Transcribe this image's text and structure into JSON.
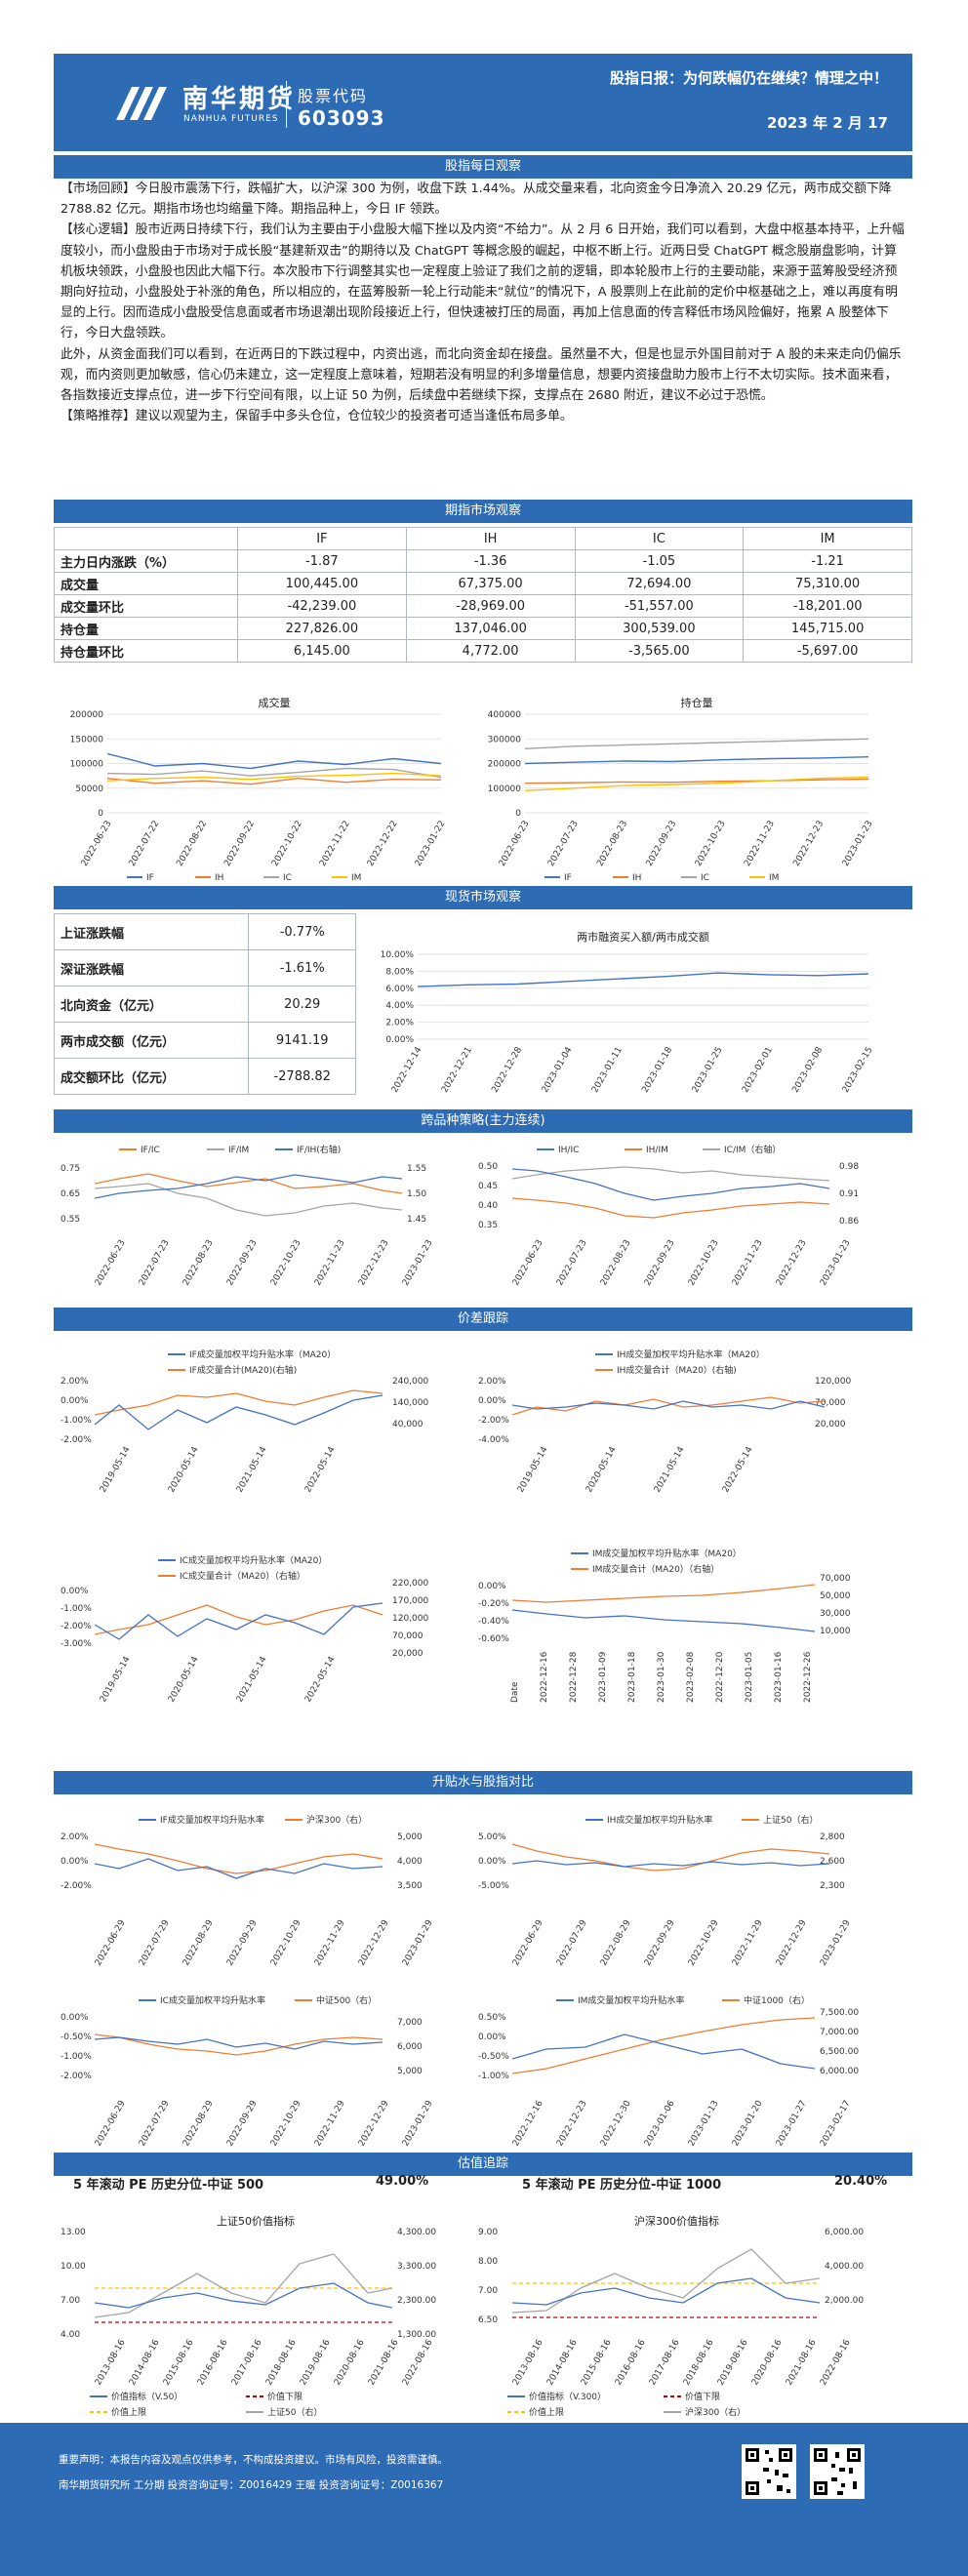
{
  "header": {
    "brand_cn": "南华期货",
    "brand_en": "NANHUA FUTURES",
    "code_label": "股票代码",
    "code": "603093",
    "title": "股指日报：为何跌幅仍在继续？情理之中！",
    "date": "2023 年 2 月 17"
  },
  "sections": {
    "daily": "股指每日观察",
    "futures": "期指市场观察",
    "spot": "现货市场观察",
    "cross": "跨品种策略(主力连续)",
    "price": "价差跟踪",
    "basis": "升贴水与股指对比",
    "valuation": "估值追踪"
  },
  "paragraphs": [
    {
      "tag": "【市场回顾】",
      "text": "今日股市震荡下行，跌幅扩大，以沪深 300 为例，收盘下跌 1.44%。从成交量来看，北向资金今日净流入 20.29 亿元，两市成交额下降 2788.82 亿元。期指市场也均缩量下降。期指品种上，今日 IF 领跌。"
    },
    {
      "tag": "【核心逻辑】",
      "text": "股市近两日持续下行，我们认为主要由于小盘股大幅下挫以及内资“不给力”。从 2 月 6 日开始，我们可以看到，大盘中枢基本持平，上升幅度较小，而小盘股由于市场对于成长股“基建新双击”的期待以及 ChatGPT 等概念股的崛起，中枢不断上行。近两日受 ChatGPT 概念股崩盘影响，计算机板块领跌，小盘股也因此大幅下行。本次股市下行调整其实也一定程度上验证了我们之前的逻辑，即本轮股市上行的主要动能，来源于蓝筹股受经济预期向好拉动，小盘股处于补涨的角色，所以相应的，在蓝筹股新一轮上行动能未“就位”的情况下，A 股票则上在此前的定价中枢基础之上，难以再度有明显的上行。因而造成小盘股受信息面或者市场退潮出现阶段接近上行，但快速被打压的局面，再加上信息面的传言释低市场风险偏好，拖累 A 股整体下行，今日大盘领跌。"
    },
    {
      "tag": "",
      "text": "此外，从资金面我们可以看到，在近两日的下跌过程中，内资出逃，而北向资金却在接盘。虽然量不大，但是也显示外国目前对于 A 股的未来走向仍偏乐观，而内资则更加敏感，信心仍未建立，这一定程度上意味着，短期若没有明显的利多增量信息，想要内资接盘助力股市上行不太切实际。技术面来看，各指数接近支撑点位，进一步下行空间有限，以上证 50 为例，后续盘中若继续下探，支撑点在 2680 附近，建议不必过于恐慌。"
    },
    {
      "tag": "【策略推荐】",
      "text": "建议以观望为主，保留手中多头仓位，仓位较少的投资者可适当逢低布局多单。"
    }
  ],
  "futures_table": {
    "headers": [
      "IF",
      "IH",
      "IC",
      "IM"
    ],
    "rows": [
      {
        "label": "主力日内涨跌（%）",
        "values": [
          "-1.87",
          "-1.36",
          "-1.05",
          "-1.21"
        ]
      },
      {
        "label": "成交量",
        "values": [
          "100,445.00",
          "67,375.00",
          "72,694.00",
          "75,310.00"
        ]
      },
      {
        "label": "成交量环比",
        "values": [
          "-42,239.00",
          "-28,969.00",
          "-51,557.00",
          "-18,201.00"
        ]
      },
      {
        "label": "持仓量",
        "values": [
          "227,826.00",
          "137,046.00",
          "300,539.00",
          "145,715.00"
        ]
      },
      {
        "label": "持仓量环比",
        "values": [
          "6,145.00",
          "4,772.00",
          "-3,565.00",
          "-5,697.00"
        ]
      }
    ]
  },
  "spot_table": [
    {
      "label": "上证涨跌幅",
      "value": "-0.77%"
    },
    {
      "label": "深证涨跌幅",
      "value": "-1.61%"
    },
    {
      "label": "北向资金（亿元）",
      "value": "20.29"
    },
    {
      "label": "两市成交额（亿元）",
      "value": "9141.19"
    },
    {
      "label": "成交额环比（亿元）",
      "value": "-2788.82"
    }
  ],
  "pe": {
    "left_label": "5 年滚动 PE 历史分位-中证 500",
    "left_value": "49.00%",
    "right_label": "5 年滚动 PE 历史分位-中证 1000",
    "right_value": "20.40%"
  },
  "footer": {
    "line1": "重要声明：本报告内容及观点仅供参考，不构成投资建议。市场有风险，投资需谨慎。",
    "line2": "南华期货研究所  工分期  投资咨询证号：Z0016429    王暖  投资咨询证号：Z0016367"
  },
  "colors": {
    "primary": "#2e6bb5",
    "blue": "#4472c4",
    "orange": "#ed7d31",
    "gray": "#a5a5a5",
    "yellow": "#ffc000"
  },
  "chart_data": [
    {
      "id": "volume",
      "type": "line",
      "title": "成交量",
      "x": [
        "2022-06-23",
        "2022-07-22",
        "2022-08-22",
        "2022-09-22",
        "2022-10-22",
        "2022-11-22",
        "2022-12-22",
        "2023-01-22"
      ],
      "ylim": [
        0,
        200000
      ],
      "yticks": [
        "200000",
        "150000",
        "100000",
        "50000",
        "0"
      ],
      "series": [
        {
          "name": "IF",
          "values": [
            120000,
            95000,
            100000,
            90000,
            105000,
            98000,
            110000,
            100000
          ]
        },
        {
          "name": "IH",
          "values": [
            70000,
            60000,
            65000,
            58000,
            70000,
            62000,
            68000,
            67000
          ]
        },
        {
          "name": "IC",
          "values": [
            80000,
            78000,
            85000,
            75000,
            82000,
            90000,
            88000,
            72000
          ]
        },
        {
          "name": "IM",
          "values": [
            65000,
            70000,
            72000,
            68000,
            74000,
            76000,
            80000,
            75000
          ]
        }
      ]
    },
    {
      "id": "oi",
      "type": "line",
      "title": "持仓量",
      "x": [
        "2022-06-23",
        "2022-07-23",
        "2022-08-23",
        "2022-09-23",
        "2022-10-23",
        "2022-11-23",
        "2022-12-23",
        "2023-01-23"
      ],
      "ylim": [
        0,
        400000
      ],
      "yticks": [
        "400000",
        "300000",
        "200000",
        "100000",
        "0"
      ],
      "series": [
        {
          "name": "IF",
          "values": [
            200000,
            205000,
            210000,
            208000,
            215000,
            220000,
            222000,
            227000
          ]
        },
        {
          "name": "IH",
          "values": [
            120000,
            122000,
            125000,
            124000,
            128000,
            130000,
            134000,
            137000
          ]
        },
        {
          "name": "IC",
          "values": [
            260000,
            270000,
            275000,
            280000,
            285000,
            290000,
            295000,
            300000
          ]
        },
        {
          "name": "IM",
          "values": [
            90000,
            100000,
            110000,
            115000,
            120000,
            130000,
            140000,
            145000
          ]
        }
      ]
    },
    {
      "id": "margin",
      "type": "line",
      "title": "两市融资买入额/两市成交额",
      "x": [
        "2022-12-14",
        "2022-12-21",
        "2022-12-28",
        "2023-01-04",
        "2023-01-11",
        "2023-01-18",
        "2023-01-25",
        "2023-02-01",
        "2023-02-08",
        "2023-02-15"
      ],
      "ylim": [
        0,
        10
      ],
      "yticks": [
        "10.00%",
        "8.00%",
        "6.00%",
        "4.00%",
        "2.00%",
        "0.00%"
      ],
      "series": [
        {
          "name": "",
          "values": [
            6.2,
            6.4,
            6.5,
            6.8,
            7.1,
            7.4,
            7.8,
            7.6,
            7.5,
            7.7
          ]
        }
      ]
    }
  ]
}
